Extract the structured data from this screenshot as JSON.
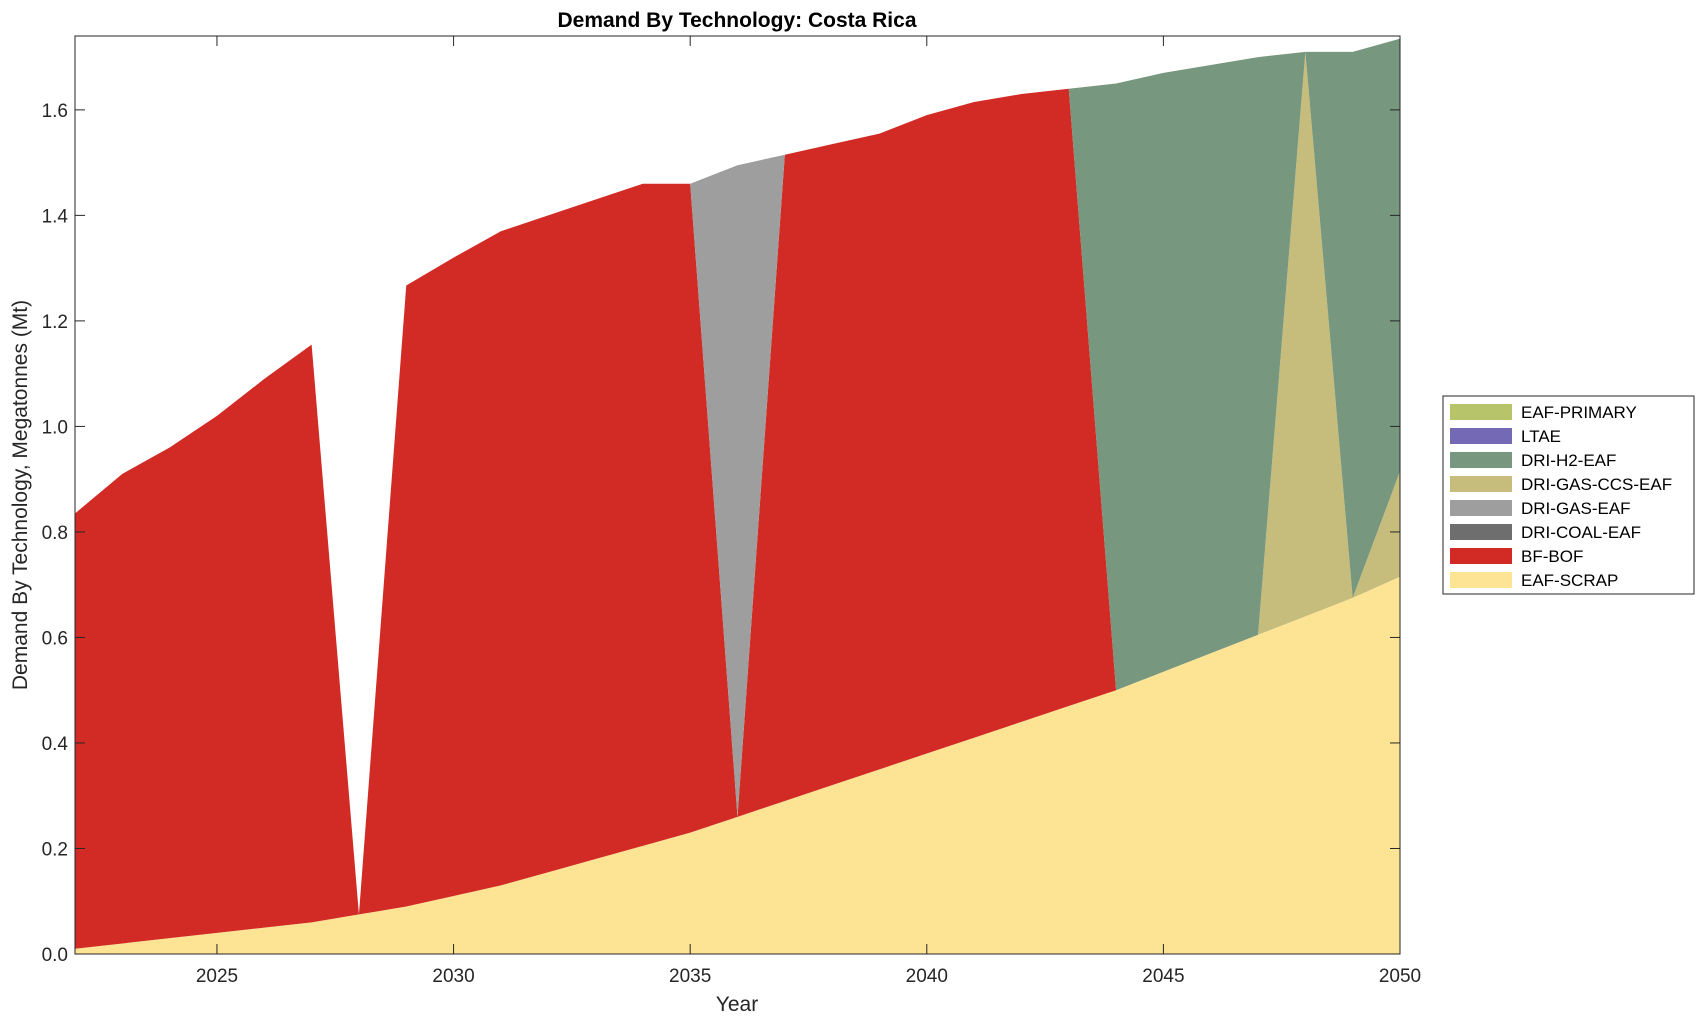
{
  "chart_data": {
    "type": "area",
    "title": "Demand By Technology: Costa Rica",
    "xlabel": "Year",
    "ylabel": "Demand By Technology, Megatonnes (Mt)",
    "xlim": [
      2022,
      2050
    ],
    "ylim": [
      0,
      1.74
    ],
    "xticks": [
      2025,
      2030,
      2035,
      2040,
      2045,
      2050
    ],
    "xtick_labels": [
      "2025",
      "2030",
      "2035",
      "2040",
      "2045",
      "2050"
    ],
    "yticks": [
      0,
      0.2,
      0.4,
      0.6,
      0.8,
      1.0,
      1.2,
      1.4,
      1.6
    ],
    "ytick_labels": [
      "0.0",
      "0.2",
      "0.4",
      "0.6",
      "0.8",
      "1.0",
      "1.2",
      "1.4",
      "1.6"
    ],
    "legend_position": "outside-right",
    "x": [
      2022,
      2023,
      2024,
      2025,
      2026,
      2027,
      2028,
      2029,
      2030,
      2031,
      2032,
      2033,
      2034,
      2035,
      2036,
      2037,
      2038,
      2039,
      2040,
      2041,
      2042,
      2043,
      2044,
      2045,
      2046,
      2047,
      2048,
      2049,
      2050
    ],
    "series": [
      {
        "name": "EAF-SCRAP",
        "color": "#fde494",
        "values": [
          0.01,
          0.02,
          0.03,
          0.04,
          0.05,
          0.06,
          0.075,
          0.09,
          0.11,
          0.13,
          0.155,
          0.18,
          0.205,
          0.23,
          0.26,
          0.29,
          0.32,
          0.35,
          0.38,
          0.41,
          0.44,
          0.47,
          0.5,
          0.535,
          0.57,
          0.605,
          0.64,
          0.675,
          0.715
        ]
      },
      {
        "name": "BF-BOF",
        "color": "#d22b25",
        "values": [
          0.825,
          0.89,
          0.93,
          0.98,
          1.04,
          1.095,
          0.0,
          1.177,
          1.21,
          1.24,
          1.245,
          1.25,
          1.255,
          1.23,
          0.0,
          1.225,
          1.215,
          1.205,
          1.21,
          1.205,
          1.19,
          1.17,
          0.0,
          0.0,
          0.0,
          0.0,
          0.0,
          0.0,
          0.0
        ]
      },
      {
        "name": "DRI-COAL-EAF",
        "color": "#6e6e6e",
        "values": [
          0,
          0,
          0,
          0,
          0,
          0,
          0,
          0,
          0,
          0,
          0,
          0,
          0,
          0,
          0,
          0,
          0,
          0,
          0,
          0,
          0,
          0,
          0,
          0,
          0,
          0,
          0,
          0,
          0
        ]
      },
      {
        "name": "DRI-GAS-EAF",
        "color": "#9e9e9e",
        "values": [
          0,
          0,
          0,
          0,
          0,
          0,
          0.0,
          0,
          0,
          0,
          0,
          0,
          0,
          0,
          1.235,
          0,
          0,
          0,
          0,
          0,
          0,
          0,
          0,
          0,
          0,
          0,
          0,
          0,
          0
        ]
      },
      {
        "name": "DRI-GAS-CCS-EAF",
        "color": "#c6bd7c",
        "values": [
          0,
          0,
          0,
          0,
          0,
          0,
          0,
          0,
          0,
          0,
          0,
          0,
          0,
          0,
          0,
          0,
          0,
          0,
          0,
          0,
          0,
          0,
          0,
          0,
          0,
          0,
          1.07,
          0,
          0.2
        ]
      },
      {
        "name": "DRI-H2-EAF",
        "color": "#77977e",
        "values": [
          0,
          0,
          0,
          0,
          0,
          0,
          0,
          0,
          0,
          0,
          0,
          0,
          0,
          0,
          0,
          0,
          0,
          0,
          0,
          0,
          0,
          0,
          1.15,
          1.135,
          1.115,
          1.095,
          0.0,
          1.035,
          0.82
        ]
      },
      {
        "name": "LTAE",
        "color": "#7469b5",
        "values": [
          0,
          0,
          0,
          0,
          0,
          0,
          0,
          0,
          0,
          0,
          0,
          0,
          0,
          0,
          0,
          0,
          0,
          0,
          0,
          0,
          0,
          0,
          0,
          0,
          0,
          0,
          0,
          0,
          0
        ]
      },
      {
        "name": "EAF-PRIMARY",
        "color": "#b8c46a",
        "values": [
          0,
          0,
          0,
          0,
          0,
          0,
          0,
          0,
          0,
          0,
          0,
          0,
          0,
          0,
          0,
          0,
          0,
          0,
          0,
          0,
          0,
          0,
          0,
          0,
          0,
          0,
          0,
          0,
          0
        ]
      }
    ],
    "legend_order": [
      "EAF-PRIMARY",
      "LTAE",
      "DRI-H2-EAF",
      "DRI-GAS-CCS-EAF",
      "DRI-GAS-EAF",
      "DRI-COAL-EAF",
      "BF-BOF",
      "EAF-SCRAP"
    ]
  }
}
